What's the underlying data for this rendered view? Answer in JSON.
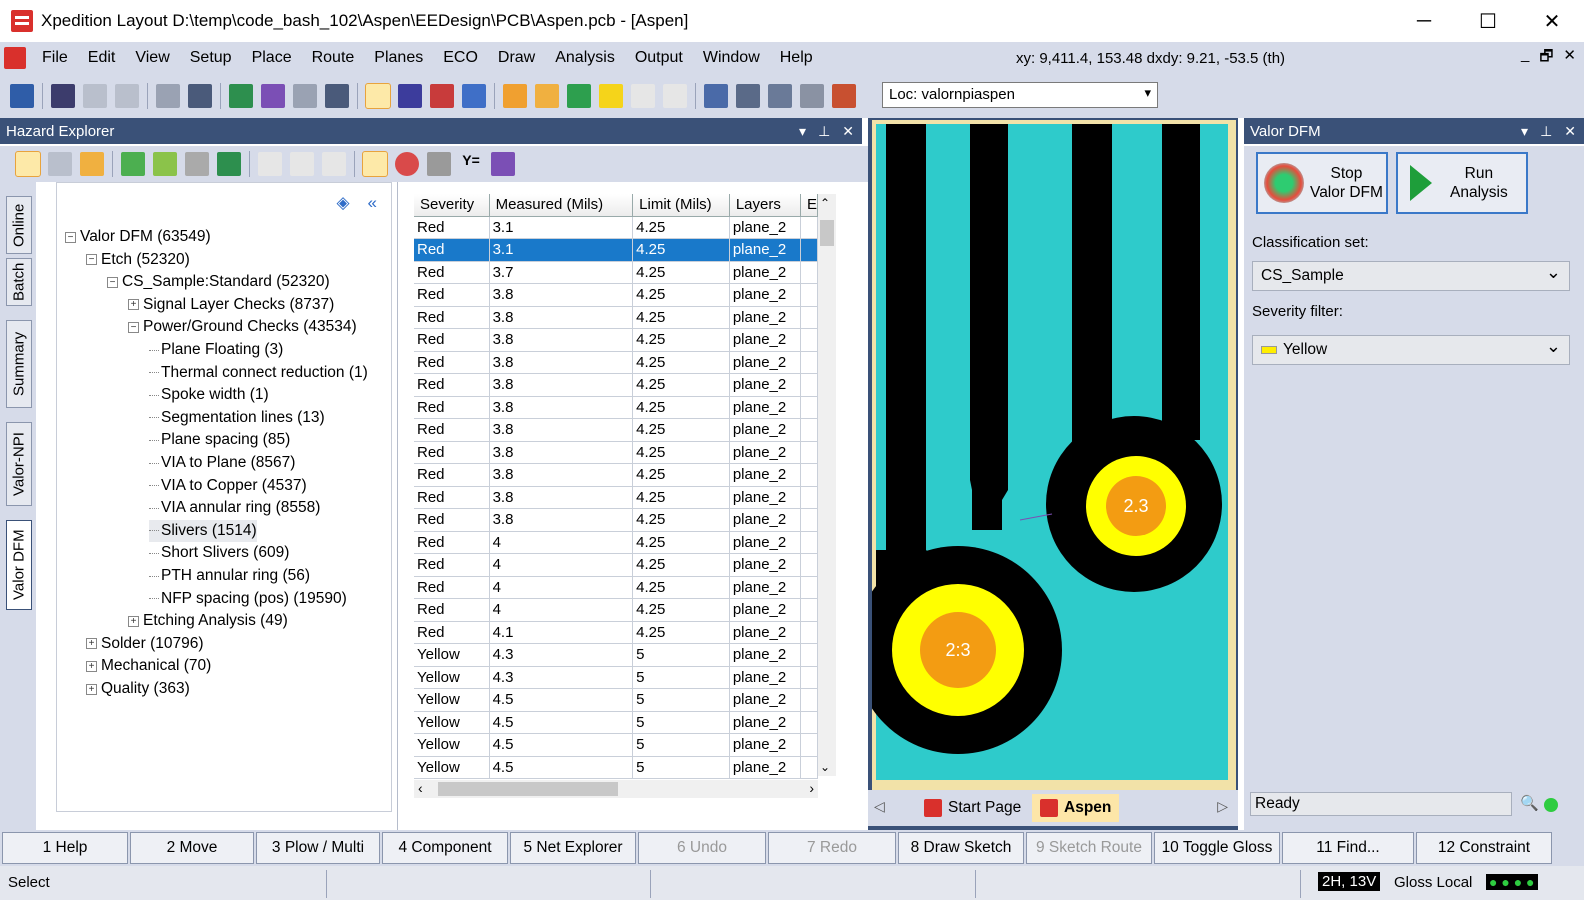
{
  "window": {
    "title": "Xpedition Layout  D:\\temp\\code_bash_102\\Aspen\\EEDesign\\PCB\\Aspen.pcb - [Aspen]",
    "minimize": "─",
    "maximize": "☐",
    "close": "✕"
  },
  "menubar": {
    "items": [
      "File",
      "Edit",
      "View",
      "Setup",
      "Place",
      "Route",
      "Planes",
      "ECO",
      "Draw",
      "Analysis",
      "Output",
      "Window",
      "Help"
    ],
    "coords": "xy: 9,411.4, 153.48  dxdy: 9.21, -53.5  (th)",
    "mdi_min": "_",
    "mdi_restore": "🗗",
    "mdi_close": "✕"
  },
  "toolbar": {
    "loc_value": "Loc: valornpiaspen"
  },
  "hazard_explorer": {
    "title": "Hazard Explorer",
    "vtabs": [
      "Online",
      "Batch",
      "Summary",
      "Valor-NPI",
      "Valor DFM"
    ],
    "tree": [
      {
        "label": "Valor DFM (63549)",
        "level": 0,
        "exp": "−"
      },
      {
        "label": "Etch (52320)",
        "level": 1,
        "exp": "−"
      },
      {
        "label": "CS_Sample:Standard (52320)",
        "level": 2,
        "exp": "−"
      },
      {
        "label": "Signal Layer Checks (8737)",
        "level": 3,
        "exp": "+"
      },
      {
        "label": "Power/Ground Checks (43534)",
        "level": 3,
        "exp": "−"
      },
      {
        "label": "Plane Floating (3)",
        "level": 4,
        "exp": ""
      },
      {
        "label": "Thermal connect reduction (1)",
        "level": 4,
        "exp": ""
      },
      {
        "label": "Spoke width (1)",
        "level": 4,
        "exp": ""
      },
      {
        "label": "Segmentation lines (13)",
        "level": 4,
        "exp": ""
      },
      {
        "label": "Plane spacing (85)",
        "level": 4,
        "exp": ""
      },
      {
        "label": "VIA to Plane (8567)",
        "level": 4,
        "exp": ""
      },
      {
        "label": "VIA to Copper (4537)",
        "level": 4,
        "exp": ""
      },
      {
        "label": "VIA annular ring (8558)",
        "level": 4,
        "exp": ""
      },
      {
        "label": "Slivers (1514)",
        "level": 4,
        "exp": "",
        "selected": true
      },
      {
        "label": "Short Slivers (609)",
        "level": 4,
        "exp": ""
      },
      {
        "label": "PTH annular ring (56)",
        "level": 4,
        "exp": ""
      },
      {
        "label": "NFP spacing (pos) (19590)",
        "level": 4,
        "exp": ""
      },
      {
        "label": "Etching Analysis (49)",
        "level": 3,
        "exp": "+"
      },
      {
        "label": "Solder (10796)",
        "level": 1,
        "exp": "+"
      },
      {
        "label": "Mechanical (70)",
        "level": 1,
        "exp": "+"
      },
      {
        "label": "Quality (363)",
        "level": 1,
        "exp": "+"
      }
    ],
    "columns": [
      "Severity",
      "Measured (Mils)",
      "Limit (Mils)",
      "Layers",
      "E"
    ],
    "rows": [
      [
        "Red",
        "3.1",
        "4.25",
        "plane_2"
      ],
      [
        "Red",
        "3.1",
        "4.25",
        "plane_2"
      ],
      [
        "Red",
        "3.7",
        "4.25",
        "plane_2"
      ],
      [
        "Red",
        "3.8",
        "4.25",
        "plane_2"
      ],
      [
        "Red",
        "3.8",
        "4.25",
        "plane_2"
      ],
      [
        "Red",
        "3.8",
        "4.25",
        "plane_2"
      ],
      [
        "Red",
        "3.8",
        "4.25",
        "plane_2"
      ],
      [
        "Red",
        "3.8",
        "4.25",
        "plane_2"
      ],
      [
        "Red",
        "3.8",
        "4.25",
        "plane_2"
      ],
      [
        "Red",
        "3.8",
        "4.25",
        "plane_2"
      ],
      [
        "Red",
        "3.8",
        "4.25",
        "plane_2"
      ],
      [
        "Red",
        "3.8",
        "4.25",
        "plane_2"
      ],
      [
        "Red",
        "3.8",
        "4.25",
        "plane_2"
      ],
      [
        "Red",
        "3.8",
        "4.25",
        "plane_2"
      ],
      [
        "Red",
        "4",
        "4.25",
        "plane_2"
      ],
      [
        "Red",
        "4",
        "4.25",
        "plane_2"
      ],
      [
        "Red",
        "4",
        "4.25",
        "plane_2"
      ],
      [
        "Red",
        "4",
        "4.25",
        "plane_2"
      ],
      [
        "Red",
        "4.1",
        "4.25",
        "plane_2"
      ],
      [
        "Yellow",
        "4.3",
        "5",
        "plane_2"
      ],
      [
        "Yellow",
        "4.3",
        "5",
        "plane_2"
      ],
      [
        "Yellow",
        "4.5",
        "5",
        "plane_2"
      ],
      [
        "Yellow",
        "4.5",
        "5",
        "plane_2"
      ],
      [
        "Yellow",
        "4.5",
        "5",
        "plane_2"
      ],
      [
        "Yellow",
        "4.5",
        "5",
        "plane_2"
      ]
    ],
    "selected_row": 1
  },
  "pcb": {
    "pad_label_1": "2:3",
    "pad_label_2": "2.3",
    "tabs": [
      "Start Page",
      "Aspen"
    ],
    "colors": {
      "copper": "#000000",
      "plane": "#2ecbcb",
      "pad": "#ffff00",
      "drill": "#f39c12",
      "border": "#f2e2a8"
    }
  },
  "valor_dfm": {
    "title": "Valor DFM",
    "stop_label_1": "Stop",
    "stop_label_2": "Valor DFM",
    "run_label_1": "Run",
    "run_label_2": "Analysis",
    "classification_label": "Classification set:",
    "classification_value": "CS_Sample",
    "severity_label": "Severity filter:",
    "severity_value": "Yellow",
    "status": "Ready"
  },
  "fkeys": [
    {
      "label": "1 Help",
      "disabled": false
    },
    {
      "label": "2 Move",
      "disabled": false
    },
    {
      "label": "3 Plow / Multi",
      "disabled": false
    },
    {
      "label": "4 Component",
      "disabled": false
    },
    {
      "label": "5 Net Explorer",
      "disabled": false
    },
    {
      "label": "6 Undo",
      "disabled": true
    },
    {
      "label": "7 Redo",
      "disabled": true
    },
    {
      "label": "8 Draw Sketch",
      "disabled": false
    },
    {
      "label": "9 Sketch Route",
      "disabled": true
    },
    {
      "label": "10 Toggle Gloss",
      "disabled": false
    },
    {
      "label": "11 Find...",
      "disabled": false
    },
    {
      "label": "12 Constraint",
      "disabled": false
    }
  ],
  "statusbar": {
    "mode": "Select",
    "layer": "2H, 13V",
    "gloss": "Gloss Local"
  }
}
